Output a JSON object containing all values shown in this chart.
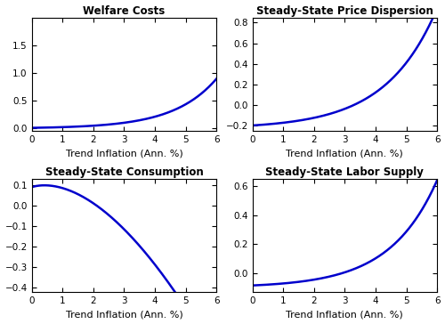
{
  "title1": "Welfare Costs",
  "title2": "Steady-State Price Dispersion",
  "title3": "Steady-State Consumption",
  "title4": "Steady-State Labor Supply",
  "xlabel": "Trend Inflation (Ann. %)",
  "x_range": [
    0,
    6
  ],
  "line_color": "#0000CC",
  "line_width": 1.8,
  "background_color": "#ffffff",
  "panel_bg": "#ffffff",
  "welfare_ylim": [
    -0.05,
    2.0
  ],
  "price_disp_ylim": [
    -0.25,
    0.85
  ],
  "consumption_ylim": [
    -0.42,
    0.13
  ],
  "labor_ylim": [
    -0.13,
    0.65
  ],
  "welfare_yticks": [
    0.0,
    0.5,
    1.0,
    1.5
  ],
  "price_disp_yticks": [
    -0.2,
    0.0,
    0.2,
    0.4,
    0.6,
    0.8
  ],
  "consumption_yticks": [
    -0.4,
    -0.3,
    -0.2,
    -0.1,
    0.0,
    0.1
  ],
  "labor_yticks": [
    0.0,
    0.2,
    0.4,
    0.6
  ],
  "xticks": [
    0,
    1,
    2,
    3,
    4,
    5,
    6
  ]
}
